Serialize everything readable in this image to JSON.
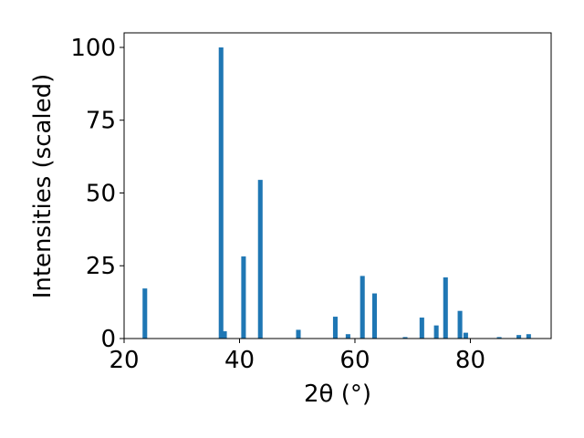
{
  "chart_data": {
    "type": "bar",
    "x_label": "2θ (°)",
    "y_label": "Intensities (scaled)",
    "x": [
      23.6,
      36.8,
      37.4,
      40.7,
      43.6,
      50.2,
      56.6,
      58.8,
      61.3,
      63.4,
      68.7,
      71.6,
      74.1,
      75.7,
      78.2,
      79.2,
      85.0,
      88.4,
      90.1
    ],
    "values": [
      17.2,
      100,
      2.5,
      28.2,
      54.5,
      3,
      7.5,
      1.5,
      21.5,
      15.5,
      0.5,
      7.2,
      4.5,
      21,
      9.5,
      2,
      0.5,
      1.2,
      1.5
    ],
    "color": "#1f77b4",
    "xlim": [
      20,
      94
    ],
    "xticks": [
      20,
      40,
      60,
      80
    ],
    "ylim": [
      0,
      105
    ],
    "yticks": [
      0,
      25,
      50,
      75,
      100
    ]
  }
}
